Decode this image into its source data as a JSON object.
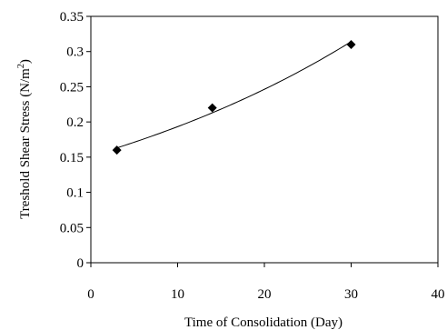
{
  "chart_data": {
    "type": "scatter",
    "xlabel": "Time of Consolidation (Day)",
    "ylabel_main": "Treshold Shear Stress (N/m",
    "ylabel_sup": "2",
    "ylabel_end": ")",
    "xlim": [
      0,
      40
    ],
    "ylim": [
      0,
      0.35
    ],
    "xticks": [
      0,
      10,
      20,
      30,
      40
    ],
    "yticks": [
      0,
      0.05,
      0.1,
      0.15,
      0.2,
      0.25,
      0.3,
      0.35
    ],
    "xtick_labels": [
      "0",
      "10",
      "20",
      "30",
      "40"
    ],
    "ytick_labels": [
      "0",
      "0.05",
      "0.1",
      "0.15",
      "0.2",
      "0.25",
      "0.3",
      "0.35"
    ],
    "grid": false,
    "legend": "none",
    "marker": "diamond",
    "series": [
      {
        "x": [
          3,
          14,
          30
        ],
        "y": [
          0.16,
          0.22,
          0.31
        ]
      }
    ],
    "trendline": {
      "type": "exponential",
      "x_range": [
        3,
        30
      ]
    },
    "colors": {
      "marker": "#000000",
      "line": "#000000",
      "axis": "#000000"
    }
  }
}
